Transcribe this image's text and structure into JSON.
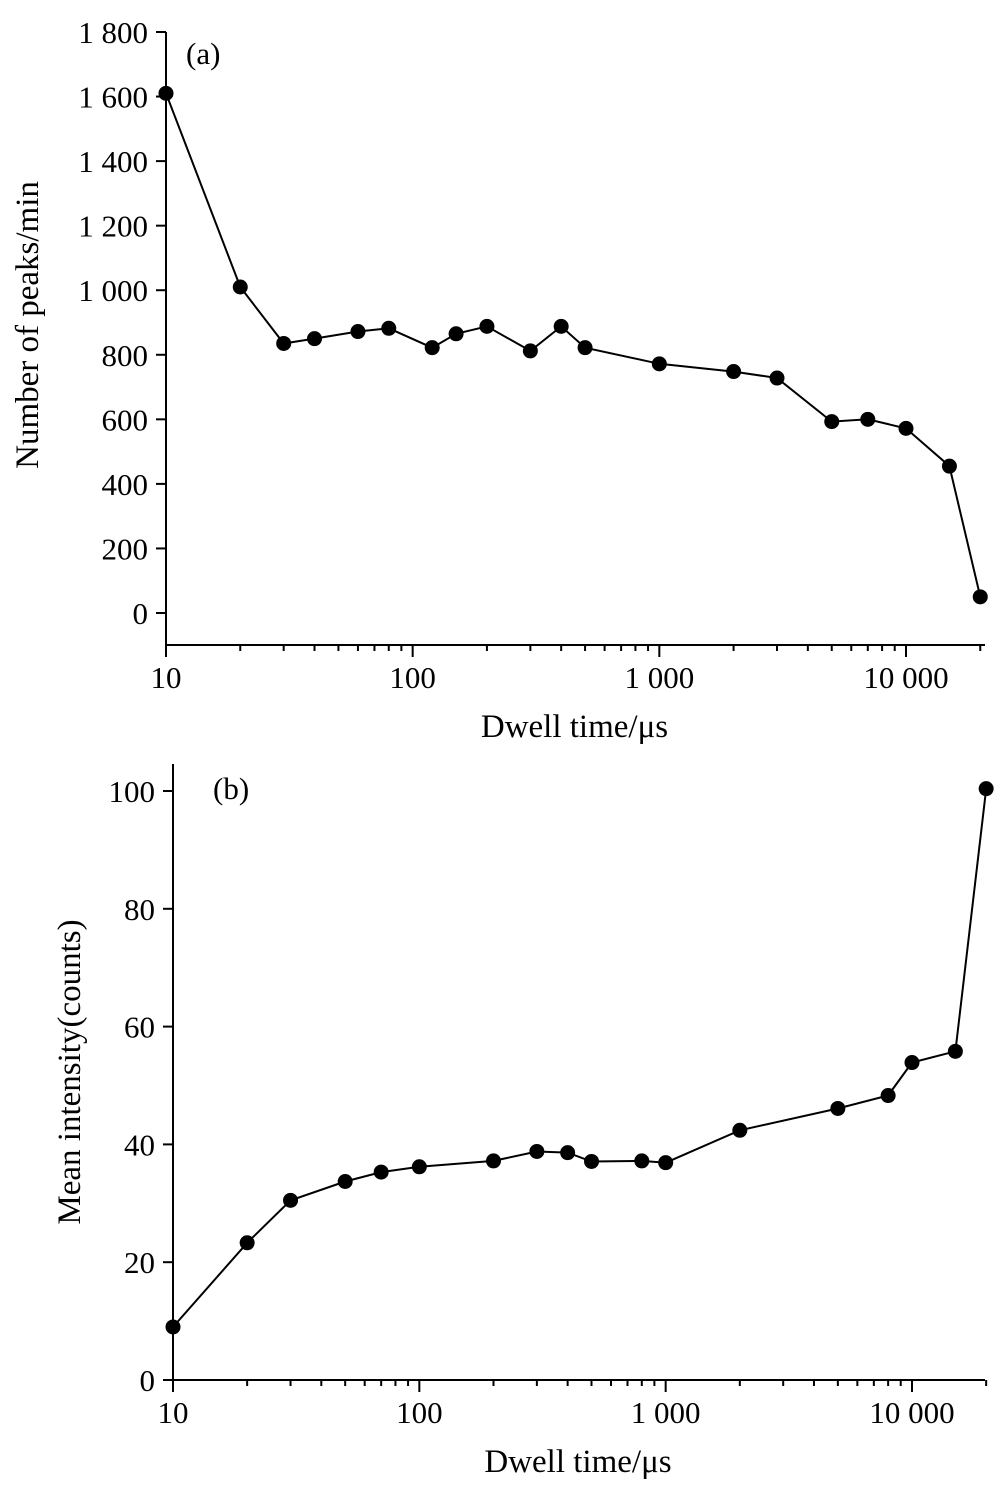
{
  "chart_data": [
    {
      "type": "line",
      "panel_label": "(a)",
      "xlabel": "Dwell time/μs",
      "ylabel": "Number of peaks/min",
      "xscale": "log",
      "xlim": [
        10,
        20000
      ],
      "ylim": [
        -100,
        1800
      ],
      "xticks": [
        10,
        100,
        1000,
        10000
      ],
      "xtick_labels": [
        "10",
        "100",
        "1 000",
        "10 000"
      ],
      "yticks": [
        0,
        200,
        400,
        600,
        800,
        1000,
        1200,
        1400,
        1600,
        1800
      ],
      "ytick_labels": [
        "0",
        "200",
        "400",
        "600",
        "800",
        "1 000",
        "1 200",
        "1 400",
        "1 600",
        "1 800"
      ],
      "grid": false,
      "series": [
        {
          "x": [
            10,
            20,
            30,
            40,
            60,
            80,
            120,
            150,
            200,
            300,
            400,
            500,
            1000,
            2000,
            3000,
            5000,
            7000,
            10000,
            15000,
            20000
          ],
          "y": [
            1610,
            1010,
            835,
            850,
            872,
            882,
            822,
            865,
            888,
            812,
            888,
            822,
            772,
            748,
            728,
            593,
            600,
            572,
            455,
            50
          ]
        }
      ]
    },
    {
      "type": "line",
      "panel_label": "(b)",
      "xlabel": "Dwell time/μs",
      "ylabel": "Mean intensity(counts)",
      "xscale": "log",
      "xlim": [
        10,
        20000
      ],
      "ylim": [
        0,
        110
      ],
      "xticks": [
        10,
        100,
        1000,
        10000
      ],
      "xtick_labels": [
        "10",
        "100",
        "1 000",
        "10 000"
      ],
      "yticks": [
        0,
        20,
        40,
        60,
        80,
        100
      ],
      "ytick_labels": [
        "0",
        "20",
        "40",
        "60",
        "80",
        "100"
      ],
      "grid": false,
      "series": [
        {
          "x": [
            10,
            20,
            30,
            50,
            70,
            100,
            200,
            300,
            400,
            500,
            800,
            1000,
            2000,
            5000,
            8000,
            10000,
            15000,
            20000
          ],
          "y": [
            9,
            23.3,
            30.5,
            33.7,
            35.3,
            36.2,
            37.2,
            38.8,
            38.6,
            37.1,
            37.2,
            36.9,
            42.4,
            46.1,
            48.3,
            53.9,
            55.8,
            100.4
          ]
        }
      ]
    }
  ]
}
